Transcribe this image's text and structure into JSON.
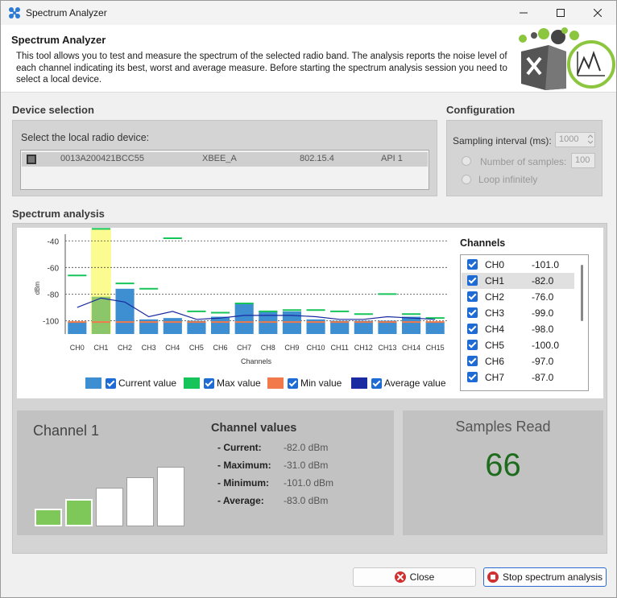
{
  "window": {
    "title": "Spectrum Analyzer"
  },
  "header": {
    "title": "Spectrum Analyzer",
    "description": "This tool allows you to test and measure the spectrum of the selected radio band. The analysis reports the noise level of each channel indicating its best, worst and average measure. Before starting the spectrum analysis session you need to select a local device."
  },
  "device_selection": {
    "section_label": "Device selection",
    "prompt": "Select the local radio device:",
    "device": {
      "mac": "0013A200421BCC55",
      "name": "XBEE_A",
      "protocol": "802.15.4",
      "mode": "API 1"
    }
  },
  "configuration": {
    "section_label": "Configuration",
    "sampling_label": "Sampling interval (ms):",
    "sampling_value": "1000",
    "samples_label": "Number of samples:",
    "samples_value": "100",
    "loop_label": "Loop infinitely"
  },
  "spectrum": {
    "section_label": "Spectrum analysis",
    "legend": [
      "Current value",
      "Max value",
      "Min value",
      "Average value"
    ],
    "channels_title": "Channels",
    "channel_list": [
      {
        "name": "CH0",
        "value": "-101.0"
      },
      {
        "name": "CH1",
        "value": "-82.0"
      },
      {
        "name": "CH2",
        "value": "-76.0"
      },
      {
        "name": "CH3",
        "value": "-99.0"
      },
      {
        "name": "CH4",
        "value": "-98.0"
      },
      {
        "name": "CH5",
        "value": "-100.0"
      },
      {
        "name": "CH6",
        "value": "-97.0"
      },
      {
        "name": "CH7",
        "value": "-87.0"
      }
    ]
  },
  "chart_data": {
    "type": "bar",
    "categories": [
      "CH0",
      "CH1",
      "CH2",
      "CH3",
      "CH4",
      "CH5",
      "CH6",
      "CH7",
      "CH8",
      "CH9",
      "CH10",
      "CH11",
      "CH12",
      "CH13",
      "CH14",
      "CH15"
    ],
    "series": [
      {
        "name": "Current value",
        "values": [
          -101,
          -82,
          -76,
          -99,
          -98,
          -100,
          -97,
          -87,
          -93,
          -93,
          -99,
          -100,
          -100,
          -100,
          -97,
          -101
        ]
      },
      {
        "name": "Max value",
        "values": [
          -66,
          -31,
          -72,
          -76,
          -38,
          -93,
          -94,
          -87,
          -93,
          -92,
          -92,
          -93,
          -95,
          -80,
          -95,
          -98
        ]
      },
      {
        "name": "Min value",
        "values": [
          -101,
          -101,
          -101,
          -101,
          -101,
          -101,
          -101,
          -101,
          -101,
          -101,
          -101,
          -101,
          -101,
          -101,
          -101,
          -101
        ]
      },
      {
        "name": "Average value",
        "values": [
          -90,
          -83,
          -86,
          -97,
          -93,
          -99,
          -98,
          -96,
          -96,
          -96,
          -97,
          -99,
          -99,
          -97,
          -98,
          -99
        ]
      }
    ],
    "yticks": [
      -40,
      -60,
      -80,
      -100
    ],
    "ylim": [
      -110,
      -35
    ],
    "ylabel": "dBm",
    "xlabel": "Channels",
    "selected_index": 1,
    "colors": {
      "current": "#3d8fd1",
      "max": "#17c45a",
      "min": "#f27a4a",
      "avg": "#1a2aa0",
      "highlight": "#fbfb90"
    }
  },
  "channel_detail": {
    "title": "Channel 1",
    "values_title": "Channel values",
    "rows": [
      {
        "label": "- Current:",
        "value": "-82.0 dBm"
      },
      {
        "label": "- Maximum:",
        "value": "-31.0 dBm"
      },
      {
        "label": "- Minimum:",
        "value": "-101.0 dBm"
      },
      {
        "label": "- Average:",
        "value": "-83.0 dBm"
      }
    ],
    "signal_level": 2
  },
  "samples": {
    "title": "Samples Read",
    "value": "66"
  },
  "footer": {
    "close_label": "Close",
    "stop_label": "Stop spectrum analysis"
  }
}
